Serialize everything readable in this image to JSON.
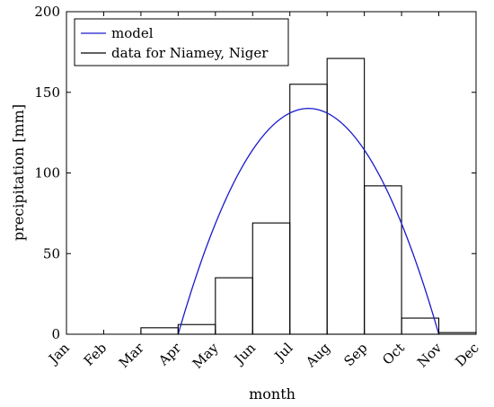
{
  "chart_data": {
    "type": "bar",
    "xlabel": "month",
    "ylabel": "precipitation [mm]",
    "ylim": [
      0,
      200
    ],
    "yticks": [
      0,
      50,
      100,
      150,
      200
    ],
    "grid": false,
    "legend_position": "top-left",
    "categories": [
      "Jan",
      "Feb",
      "Mar",
      "Apr",
      "May",
      "Jun",
      "Jul",
      "Aug",
      "Sep",
      "Oct",
      "Nov",
      "Dec"
    ],
    "series": [
      {
        "name": "data for Niamey, Niger",
        "style": "histogram",
        "color": "#000000",
        "values": [
          0,
          0,
          4,
          6,
          35,
          69,
          155,
          171,
          92,
          10,
          1,
          0
        ]
      },
      {
        "name": "model",
        "style": "line",
        "color": "#1a1acd",
        "peak_month_index": 6.5,
        "peak_value": 140,
        "zero_crossings_month_index": [
          3.0,
          10.0
        ]
      }
    ]
  }
}
